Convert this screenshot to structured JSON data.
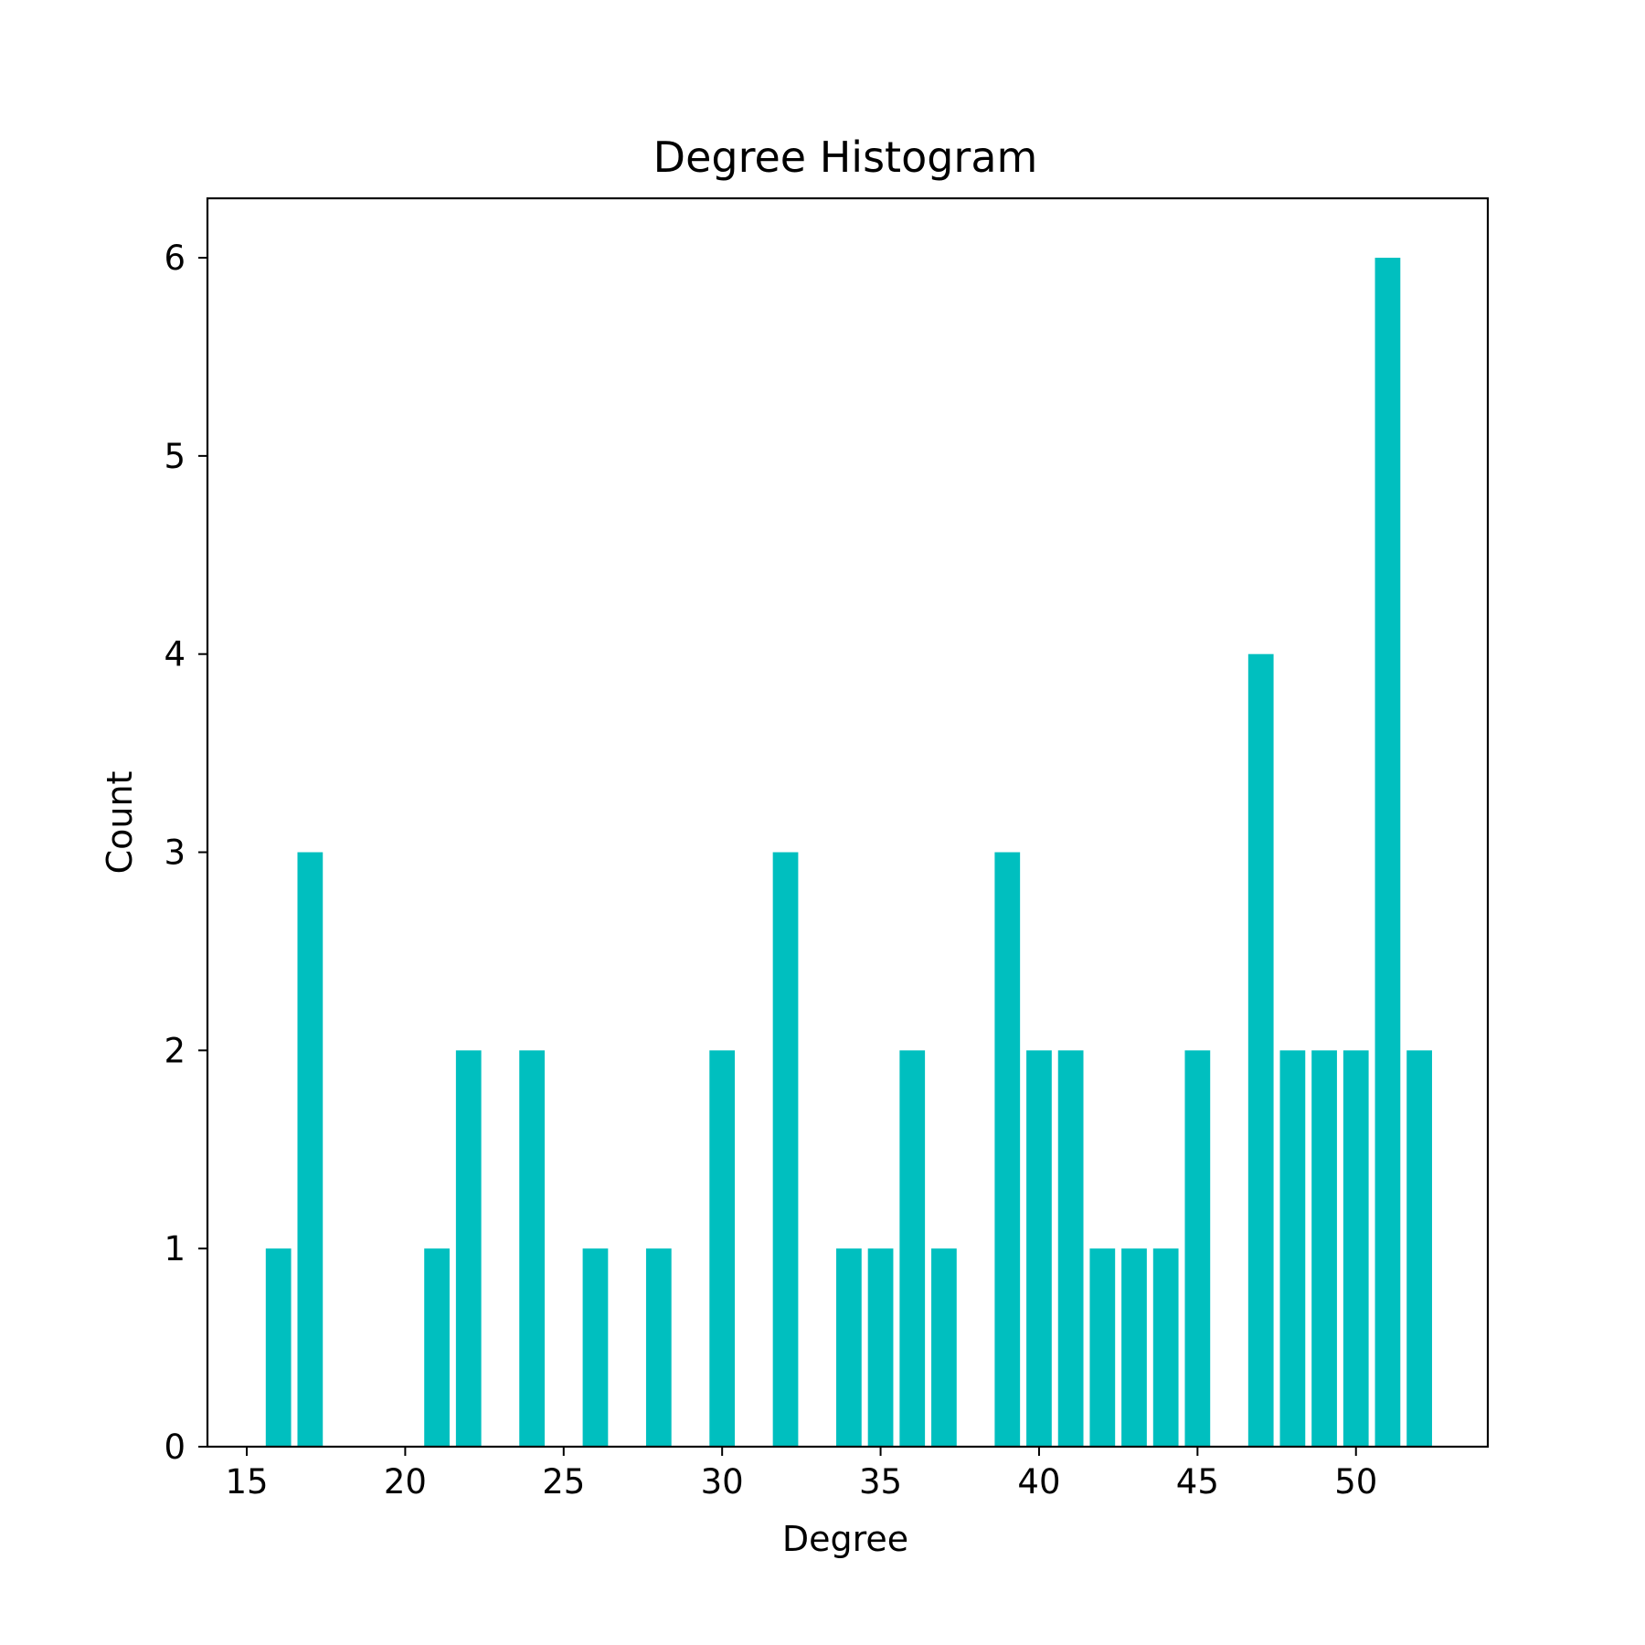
{
  "chart_data": {
    "type": "bar",
    "title": "Degree Histogram",
    "xlabel": "Degree",
    "ylabel": "Count",
    "x": [
      16,
      17,
      21,
      22,
      24,
      26,
      28,
      30,
      32,
      34,
      35,
      36,
      37,
      39,
      40,
      41,
      42,
      43,
      44,
      45,
      47,
      48,
      49,
      50,
      51,
      52
    ],
    "values": [
      1,
      3,
      1,
      2,
      2,
      1,
      1,
      2,
      3,
      1,
      1,
      2,
      1,
      3,
      2,
      2,
      1,
      1,
      1,
      2,
      4,
      2,
      2,
      2,
      6,
      2
    ],
    "bar_width": 0.8,
    "xlim": [
      13.76,
      54.16
    ],
    "ylim": [
      0,
      6.3
    ],
    "xticks": [
      15,
      20,
      25,
      30,
      35,
      40,
      45,
      50
    ],
    "yticks": [
      0,
      1,
      2,
      3,
      4,
      5,
      6
    ],
    "bar_color": "#00bfbf",
    "grid": false,
    "legend": "none"
  }
}
